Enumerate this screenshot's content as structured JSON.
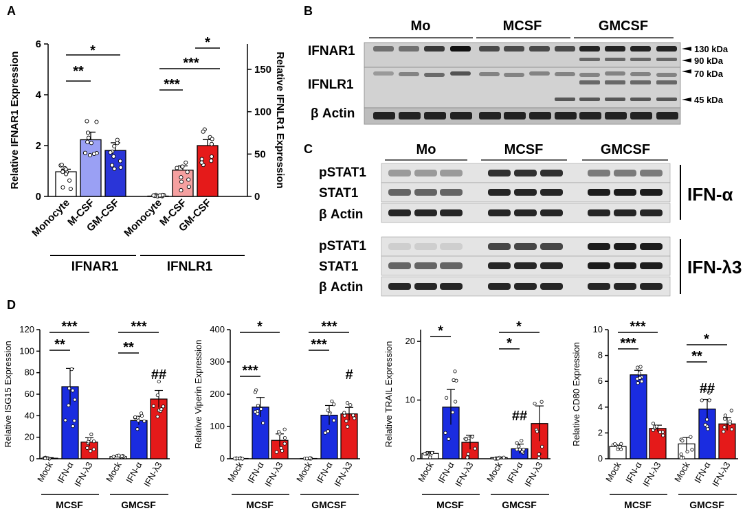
{
  "panel_labels": {
    "A": "A",
    "B": "B",
    "C": "C",
    "D": "D"
  },
  "blot_B": {
    "groups": [
      "Mo",
      "MCSF",
      "GMCSF"
    ],
    "rows": [
      "IFNAR1",
      "IFNLR1",
      "β Actin"
    ],
    "markers": [
      "130 kDa",
      "90 kDa",
      "70 kDa",
      "45 kDa"
    ]
  },
  "blot_C": {
    "groups": [
      "Mo",
      "MCSF",
      "GMCSF"
    ],
    "rows": [
      "pSTAT1",
      "STAT1",
      "β Actin",
      "pSTAT1",
      "STAT1",
      "β Actin"
    ],
    "treatments": [
      "IFN-α",
      "IFN-λ3"
    ]
  },
  "chart_data": [
    {
      "type": "bar",
      "panel": "A",
      "categories": [
        "Monocyte",
        "M-CSF",
        "GM-CSF",
        "Monocyte",
        "M-CSF",
        "GM-CSF"
      ],
      "groups": [
        "IFNAR1",
        "IFNLR1"
      ],
      "ylabel": "Relative IFNAR1 Expression",
      "y2label": "Relative IFNLR1 Expression",
      "ylim": [
        0,
        6
      ],
      "y2lim": [
        0,
        180
      ],
      "yticks": [
        "0",
        "2",
        "4",
        "6"
      ],
      "y2ticks": [
        "0",
        "50",
        "100",
        "150"
      ],
      "values": [
        0.97,
        2.23,
        1.81,
        0.4,
        31,
        60
      ],
      "errors": [
        0.1,
        0.3,
        0.3,
        0.2,
        5,
        7
      ],
      "colors": [
        "#ffffff",
        "#9aa0f4",
        "#2a35d8",
        "#ffffff",
        "#f5a0a0",
        "#e51a1a"
      ],
      "sig": [
        "**",
        "*",
        "***",
        "***",
        "*"
      ]
    },
    {
      "type": "bar",
      "panel": "D1",
      "categories": [
        "Mock",
        "IFN-α",
        "IFN-λ3",
        "Mock",
        "IFN-α",
        "IFN-λ3"
      ],
      "groups": [
        "MCSF",
        "GMCSF"
      ],
      "ylabel": "Relative ISG15 Expression",
      "ylim": [
        0,
        120
      ],
      "yticks": [
        "0",
        "20",
        "40",
        "60",
        "80",
        "100",
        "120"
      ],
      "values": [
        0.5,
        67,
        15.5,
        2,
        35.5,
        55.5
      ],
      "errors": [
        0.5,
        17,
        4,
        0.5,
        4,
        8
      ],
      "sig": [
        "***",
        "**",
        "***",
        "**",
        "##"
      ]
    },
    {
      "type": "bar",
      "panel": "D2",
      "categories": [
        "Mock",
        "IFN-α",
        "IFN-λ3",
        "Mock",
        "IFN-α",
        "IFN-λ3"
      ],
      "groups": [
        "MCSF",
        "GMCSF"
      ],
      "ylabel": "Relative Viperin Expression",
      "ylim": [
        0,
        400
      ],
      "yticks": [
        "0",
        "100",
        "200",
        "300",
        "400"
      ],
      "values": [
        1,
        160,
        57,
        1,
        135,
        139
      ],
      "errors": [
        0.5,
        30,
        20,
        0.5,
        30,
        20
      ],
      "sig": [
        "*",
        "***",
        "***",
        "***",
        "#"
      ]
    },
    {
      "type": "bar",
      "panel": "D3",
      "categories": [
        "Mock",
        "IFN-α",
        "IFN-λ3",
        "Mock",
        "IFN-α",
        "IFN-λ3"
      ],
      "groups": [
        "MCSF",
        "GMCSF"
      ],
      "ylabel": "Relative TRAIL Expression",
      "ylim": [
        0,
        22
      ],
      "yticks": [
        "0",
        "10",
        "20"
      ],
      "values": [
        0.9,
        8.8,
        2.8,
        0.2,
        1.7,
        6
      ],
      "errors": [
        0.3,
        3,
        1.2,
        0.1,
        0.8,
        3
      ],
      "sig": [
        "*",
        "*",
        "*",
        "##"
      ]
    },
    {
      "type": "bar",
      "panel": "D4",
      "categories": [
        "Mock",
        "IFN-α",
        "IFN-λ3",
        "Mock",
        "IFN-α",
        "IFN-λ3"
      ],
      "groups": [
        "MCSF",
        "GMCSF"
      ],
      "ylabel": "Relative CD80 Expression",
      "ylim": [
        0,
        10
      ],
      "yticks": [
        "0",
        "2",
        "4",
        "6",
        "8",
        "10"
      ],
      "values": [
        0.95,
        6.5,
        2.35,
        1.15,
        3.85,
        2.7
      ],
      "errors": [
        0.1,
        0.35,
        0.25,
        0.5,
        0.75,
        0.5
      ],
      "sig": [
        "***",
        "***",
        "**",
        "*",
        "##"
      ]
    }
  ]
}
